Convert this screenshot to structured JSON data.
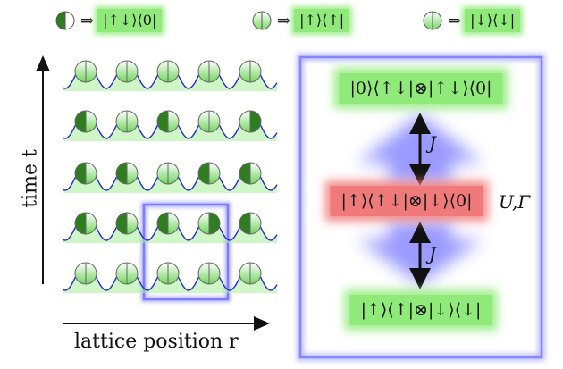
{
  "legend": [
    {
      "symbol": "doubly-occupied (left half dark green)",
      "text": "|↑↓⟩⟨0|"
    },
    {
      "symbol": "spin-up (both halves light)",
      "text": "|↑⟩⟨↑|"
    },
    {
      "symbol": "spin-down (both halves light)",
      "text": "|↓⟩⟨↓|"
    }
  ],
  "axes": {
    "y_label": "time t",
    "x_label": "lattice position r"
  },
  "lattice": {
    "rows": [
      [
        "up",
        "up",
        "up",
        "up",
        "down"
      ],
      [
        "left",
        "up",
        "left",
        "up",
        "right"
      ],
      [
        "left",
        "left",
        "up",
        "left",
        "left"
      ],
      [
        "left",
        "left",
        "left",
        "right",
        "left"
      ],
      [
        "up",
        "up",
        "up",
        "up",
        "up"
      ]
    ]
  },
  "process": {
    "top_state": "|0⟩⟨↑↓|⊗|↑↓⟩⟨0|",
    "middle_state": "|↑⟩⟨↑↓|⊗|↓⟩⟨0|",
    "bottom_state": "|↑⟩⟨↑|⊗|↓⟩⟨↓|",
    "upper_coupling": "J",
    "lower_coupling": "J",
    "side_label": "U,Γ"
  },
  "colors": {
    "green": "#8fea79",
    "dark_green": "#2e7d1e",
    "red": "#f07a7a",
    "blue": "#5b5bff",
    "wave": "#2a2acc"
  }
}
